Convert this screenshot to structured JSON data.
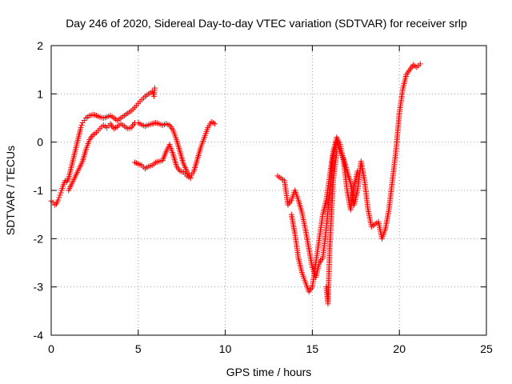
{
  "chart_data": {
    "type": "scatter",
    "title": "Day 246 of 2020, Sidereal Day-to-day VTEC variation (SDTVAR) for receiver srlp",
    "xlabel": "GPS time / hours",
    "ylabel": "SDTVAR / TECUs",
    "xlim": [
      0,
      25
    ],
    "ylim": [
      -4,
      2
    ],
    "xticks": [
      0,
      5,
      10,
      15,
      20,
      25
    ],
    "yticks": [
      -4,
      -3,
      -2,
      -1,
      0,
      1,
      2
    ],
    "grid": true,
    "marker": "+",
    "marker_color": "#ff0000",
    "series": [
      {
        "points": [
          [
            0.0,
            -1.22
          ],
          [
            0.1,
            -1.25
          ],
          [
            0.2,
            -1.3
          ],
          [
            0.3,
            -1.28
          ],
          [
            0.4,
            -1.2
          ],
          [
            0.5,
            -1.1
          ],
          [
            0.6,
            -1.0
          ],
          [
            0.7,
            -0.88
          ],
          [
            0.8,
            -0.8
          ],
          [
            0.9,
            -0.82
          ],
          [
            1.0,
            -0.75
          ],
          [
            1.1,
            -0.6
          ],
          [
            1.2,
            -0.45
          ],
          [
            1.3,
            -0.3
          ],
          [
            1.4,
            -0.15
          ],
          [
            1.5,
            0.0
          ],
          [
            1.6,
            0.15
          ],
          [
            1.7,
            0.3
          ],
          [
            1.8,
            0.4
          ],
          [
            1.9,
            0.45
          ],
          [
            2.0,
            0.5
          ],
          [
            2.1,
            0.52
          ],
          [
            2.2,
            0.55
          ],
          [
            2.4,
            0.57
          ],
          [
            2.6,
            0.55
          ],
          [
            2.8,
            0.52
          ],
          [
            3.0,
            0.5
          ],
          [
            3.2,
            0.52
          ],
          [
            3.4,
            0.55
          ],
          [
            3.6,
            0.5
          ],
          [
            3.8,
            0.45
          ],
          [
            4.0,
            0.5
          ],
          [
            4.2,
            0.55
          ],
          [
            4.4,
            0.6
          ],
          [
            4.6,
            0.65
          ],
          [
            4.8,
            0.72
          ],
          [
            5.0,
            0.8
          ],
          [
            5.2,
            0.88
          ],
          [
            5.4,
            0.95
          ],
          [
            5.6,
            1.0
          ],
          [
            5.8,
            1.05
          ],
          [
            5.9,
            0.95
          ],
          [
            5.95,
            1.12
          ]
        ]
      },
      {
        "points": [
          [
            1.0,
            -1.0
          ],
          [
            1.2,
            -0.85
          ],
          [
            1.4,
            -0.7
          ],
          [
            1.6,
            -0.55
          ],
          [
            1.8,
            -0.4
          ],
          [
            2.0,
            -0.15
          ],
          [
            2.2,
            0.05
          ],
          [
            2.4,
            0.15
          ],
          [
            2.6,
            0.2
          ],
          [
            2.8,
            0.28
          ],
          [
            3.0,
            0.35
          ],
          [
            3.2,
            0.3
          ],
          [
            3.4,
            0.38
          ],
          [
            3.6,
            0.28
          ],
          [
            3.8,
            0.32
          ],
          [
            4.0,
            0.38
          ],
          [
            4.2,
            0.33
          ],
          [
            4.4,
            0.28
          ],
          [
            4.6,
            0.3
          ],
          [
            4.8,
            0.4
          ],
          [
            5.0,
            0.4
          ],
          [
            5.2,
            0.36
          ],
          [
            5.4,
            0.33
          ],
          [
            5.6,
            0.36
          ],
          [
            5.8,
            0.38
          ],
          [
            6.0,
            0.4
          ],
          [
            6.2,
            0.38
          ],
          [
            6.4,
            0.35
          ],
          [
            6.6,
            0.38
          ],
          [
            6.8,
            0.35
          ],
          [
            7.0,
            0.25
          ],
          [
            7.2,
            0.05
          ],
          [
            7.4,
            -0.2
          ],
          [
            7.6,
            -0.45
          ],
          [
            7.8,
            -0.6
          ],
          [
            8.0,
            -0.72
          ],
          [
            8.2,
            -0.6
          ],
          [
            8.4,
            -0.35
          ],
          [
            8.6,
            -0.1
          ],
          [
            8.8,
            0.1
          ],
          [
            9.0,
            0.3
          ],
          [
            9.2,
            0.42
          ],
          [
            9.4,
            0.38
          ]
        ]
      },
      {
        "points": [
          [
            4.8,
            -0.42
          ],
          [
            5.0,
            -0.45
          ],
          [
            5.2,
            -0.48
          ],
          [
            5.4,
            -0.55
          ],
          [
            5.6,
            -0.5
          ],
          [
            5.8,
            -0.48
          ],
          [
            6.0,
            -0.42
          ],
          [
            6.2,
            -0.4
          ],
          [
            6.4,
            -0.38
          ],
          [
            6.6,
            -0.2
          ],
          [
            6.8,
            -0.05
          ],
          [
            7.0,
            -0.25
          ],
          [
            7.2,
            -0.5
          ],
          [
            7.4,
            -0.6
          ],
          [
            7.6,
            -0.62
          ],
          [
            7.8,
            -0.7
          ],
          [
            8.0,
            -0.75
          ]
        ]
      },
      {
        "points": [
          [
            13.0,
            -0.7
          ],
          [
            13.2,
            -0.75
          ],
          [
            13.4,
            -0.8
          ],
          [
            13.6,
            -1.3
          ],
          [
            13.8,
            -1.2
          ],
          [
            14.0,
            -1.0
          ],
          [
            14.2,
            -1.2
          ],
          [
            14.4,
            -1.45
          ],
          [
            14.6,
            -1.8
          ],
          [
            14.8,
            -2.2
          ],
          [
            15.0,
            -2.6
          ],
          [
            15.2,
            -2.8
          ],
          [
            15.4,
            -2.5
          ],
          [
            15.6,
            -2.4
          ],
          [
            15.8,
            -1.8
          ],
          [
            16.0,
            -1.0
          ],
          [
            16.2,
            -0.3
          ],
          [
            16.4,
            0.0
          ],
          [
            16.6,
            -0.2
          ],
          [
            16.8,
            -0.35
          ],
          [
            17.0,
            -0.6
          ],
          [
            17.2,
            -0.85
          ],
          [
            17.4,
            -1.3
          ],
          [
            17.6,
            -1.0
          ],
          [
            17.8,
            -0.4
          ],
          [
            18.0,
            -0.8
          ],
          [
            18.2,
            -1.4
          ],
          [
            18.4,
            -1.75
          ],
          [
            18.6,
            -1.7
          ],
          [
            18.8,
            -1.65
          ],
          [
            19.0,
            -2.0
          ],
          [
            19.2,
            -1.8
          ],
          [
            19.4,
            -1.4
          ],
          [
            19.6,
            -0.8
          ],
          [
            19.8,
            -0.2
          ],
          [
            20.0,
            0.6
          ],
          [
            20.2,
            1.1
          ],
          [
            20.4,
            1.4
          ],
          [
            20.6,
            1.5
          ],
          [
            20.8,
            1.6
          ],
          [
            21.0,
            1.55
          ],
          [
            21.2,
            1.62
          ]
        ]
      },
      {
        "points": [
          [
            13.8,
            -1.5
          ],
          [
            14.0,
            -1.9
          ],
          [
            14.2,
            -2.4
          ],
          [
            14.4,
            -2.7
          ],
          [
            14.6,
            -2.9
          ],
          [
            14.8,
            -3.1
          ],
          [
            15.0,
            -3.0
          ],
          [
            15.2,
            -2.5
          ],
          [
            15.4,
            -2.0
          ],
          [
            15.6,
            -1.5
          ],
          [
            15.8,
            -1.2
          ],
          [
            16.0,
            -0.7
          ],
          [
            16.2,
            -0.2
          ],
          [
            16.4,
            0.1
          ],
          [
            16.6,
            -0.05
          ],
          [
            16.8,
            -0.4
          ],
          [
            17.0,
            -1.0
          ],
          [
            17.2,
            -1.4
          ],
          [
            17.4,
            -0.9
          ],
          [
            17.6,
            -0.6
          ]
        ]
      },
      {
        "points": [
          [
            15.8,
            -3.0
          ],
          [
            15.9,
            -3.35
          ],
          [
            16.0,
            -2.2
          ],
          [
            16.2,
            -0.8
          ],
          [
            16.4,
            -0.2
          ]
        ]
      }
    ]
  }
}
